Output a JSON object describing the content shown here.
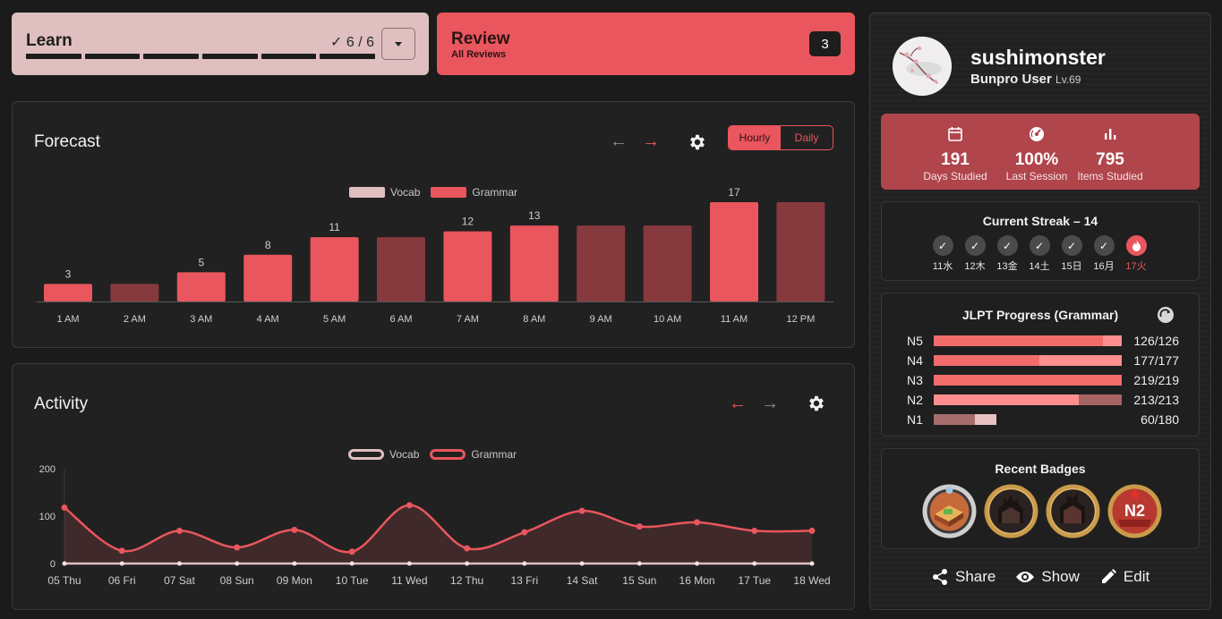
{
  "learn": {
    "title": "Learn",
    "count": "✓ 6 / 6",
    "segments": 6
  },
  "review": {
    "title": "Review",
    "subtitle": "All Reviews",
    "count": "3"
  },
  "forecast": {
    "title": "Forecast",
    "toggle": {
      "hourly": "Hourly",
      "daily": "Daily"
    },
    "legend": {
      "vocab": "Vocab",
      "grammar": "Grammar"
    },
    "colors": {
      "vocab": "#dfbfbf",
      "grammar": "#e9565d",
      "grammar_dim": "#873a3e"
    }
  },
  "activity": {
    "title": "Activity",
    "legend": {
      "vocab": "Vocab",
      "grammar": "Grammar"
    }
  },
  "chart_data": [
    {
      "type": "bar",
      "title": "Forecast",
      "categories": [
        "1 AM",
        "2 AM",
        "3 AM",
        "4 AM",
        "5 AM",
        "6 AM",
        "7 AM",
        "8 AM",
        "9 AM",
        "10 AM",
        "11 AM",
        "12 PM"
      ],
      "series": [
        {
          "name": "Grammar",
          "values": [
            3,
            3,
            5,
            8,
            11,
            11,
            12,
            13,
            13,
            13,
            17,
            17
          ]
        }
      ],
      "labels": [
        "3",
        "",
        "5",
        "8",
        "11",
        "",
        "12",
        "13",
        "",
        "",
        "17",
        ""
      ],
      "highlighted": [
        true,
        false,
        true,
        true,
        true,
        false,
        true,
        true,
        false,
        false,
        true,
        false
      ],
      "ylim": [
        0,
        18
      ],
      "legend": "top-center"
    },
    {
      "type": "area",
      "title": "Activity",
      "categories": [
        "05 Thu",
        "06 Fri",
        "07 Sat",
        "08 Sun",
        "09 Mon",
        "10 Tue",
        "11 Wed",
        "12 Thu",
        "13 Fri",
        "14 Sat",
        "15 Sun",
        "16 Mon",
        "17 Tue",
        "18 Wed"
      ],
      "series": [
        {
          "name": "Vocab",
          "values": [
            0,
            0,
            0,
            0,
            0,
            0,
            0,
            0,
            0,
            0,
            0,
            0,
            0,
            0
          ]
        },
        {
          "name": "Grammar",
          "values": [
            118,
            27,
            69,
            34,
            71,
            25,
            123,
            32,
            66,
            111,
            78,
            87,
            69,
            69
          ]
        }
      ],
      "yticks": [
        "0",
        "100",
        "200"
      ],
      "ylim": [
        0,
        200
      ],
      "legend": "top-center"
    }
  ],
  "profile": {
    "username": "sushimonster",
    "user_title": "Bunpro User",
    "level": "Lv.69",
    "stats": [
      {
        "value": "191",
        "label": "Days Studied",
        "icon": "calendar-icon"
      },
      {
        "value": "100%",
        "label": "Last Session",
        "icon": "gauge-icon"
      },
      {
        "value": "795",
        "label": "Items Studied",
        "icon": "bar-chart-icon"
      }
    ]
  },
  "streak": {
    "title": "Current Streak – 14",
    "days": [
      "11水",
      "12木",
      "13金",
      "14土",
      "15日",
      "16月",
      "17火"
    ]
  },
  "jlpt": {
    "title": "JLPT Progress (Grammar)",
    "levels": [
      {
        "level": "N5",
        "value": "126/126",
        "progress": 1.0,
        "mastered": 0.9
      },
      {
        "level": "N4",
        "value": "177/177",
        "progress": 1.0,
        "mastered": 0.56
      },
      {
        "level": "N3",
        "value": "219/219",
        "progress": 1.0,
        "mastered": 1.0
      },
      {
        "level": "N2",
        "value": "213/213",
        "progress": 1.0,
        "mastered": 0.77
      },
      {
        "level": "N1",
        "value": "60/180",
        "progress": 0.333,
        "mastered": 0.22
      }
    ]
  },
  "badges": {
    "title": "Recent Badges",
    "n2_label": "N2"
  },
  "actions": {
    "share": "Share",
    "show": "Show",
    "edit": "Edit"
  }
}
